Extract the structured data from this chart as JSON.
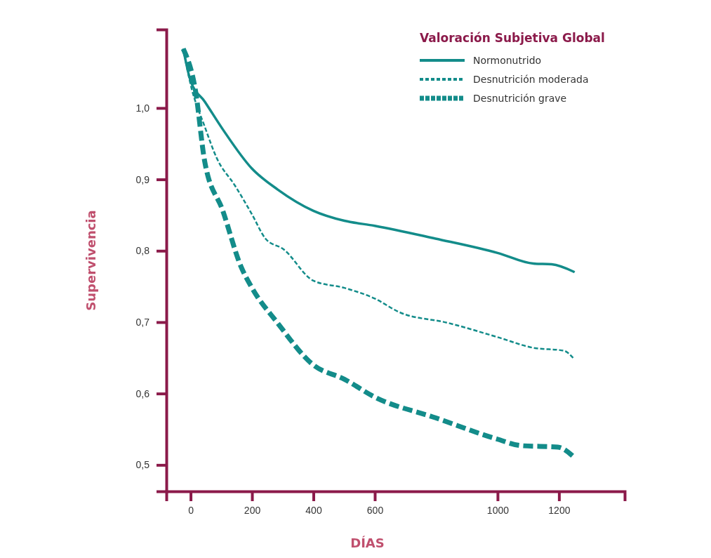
{
  "chart_data": {
    "type": "line",
    "xlabel": "DÍAS",
    "ylabel": "Supervivencia",
    "legend_title": "Valoración Subjetiva Global",
    "legend": "top right",
    "grid": false,
    "marker": "none",
    "xlim": [
      -79,
      1414
    ],
    "xticks": [
      0,
      200,
      400,
      600,
      1000,
      1200
    ],
    "ylim": [
      0.463,
      1.11
    ],
    "yticks": [
      {
        "value": 0.5,
        "label": "0,5"
      },
      {
        "value": 0.6,
        "label": "0,6"
      },
      {
        "value": 0.7,
        "label": "0,7"
      },
      {
        "value": 0.8,
        "label": "0,8"
      },
      {
        "value": 0.9,
        "label": "0,9"
      },
      {
        "value": 1.0,
        "label": "1,0"
      }
    ],
    "series": [
      {
        "name": "Normonutrido",
        "color": "#138c8a",
        "line_style": "solid",
        "x": [
          -24,
          0,
          46,
          105,
          200,
          283,
          400,
          501,
          600,
          798,
          1000,
          1117,
          1176,
          1251
        ],
        "values": [
          1.083,
          1.038,
          1.009,
          0.97,
          0.915,
          0.886,
          0.856,
          0.842,
          0.835,
          0.817,
          0.797,
          0.782,
          0.781,
          0.77
        ]
      },
      {
        "name": "Desnutrición moderada",
        "color": "#138c8a",
        "line_style": "dashed",
        "x": [
          -24,
          0,
          46,
          85,
          145,
          200,
          244,
          303,
          400,
          501,
          600,
          680,
          838,
          1000,
          1117,
          1216,
          1246
        ],
        "values": [
          1.083,
          1.033,
          0.974,
          0.93,
          0.891,
          0.851,
          0.817,
          0.802,
          0.758,
          0.748,
          0.733,
          0.714,
          0.699,
          0.679,
          0.664,
          0.66,
          0.65
        ]
      },
      {
        "name": "Desnutrición grave",
        "color": "#138c8a",
        "line_style": "dashed",
        "x": [
          -24,
          16,
          46,
          105,
          164,
          200,
          283,
          400,
          501,
          600,
          798,
          1000,
          1077,
          1196,
          1251
        ],
        "values": [
          1.083,
          1.024,
          0.925,
          0.856,
          0.778,
          0.748,
          0.699,
          0.64,
          0.62,
          0.595,
          0.566,
          0.536,
          0.527,
          0.525,
          0.51
        ]
      }
    ]
  }
}
